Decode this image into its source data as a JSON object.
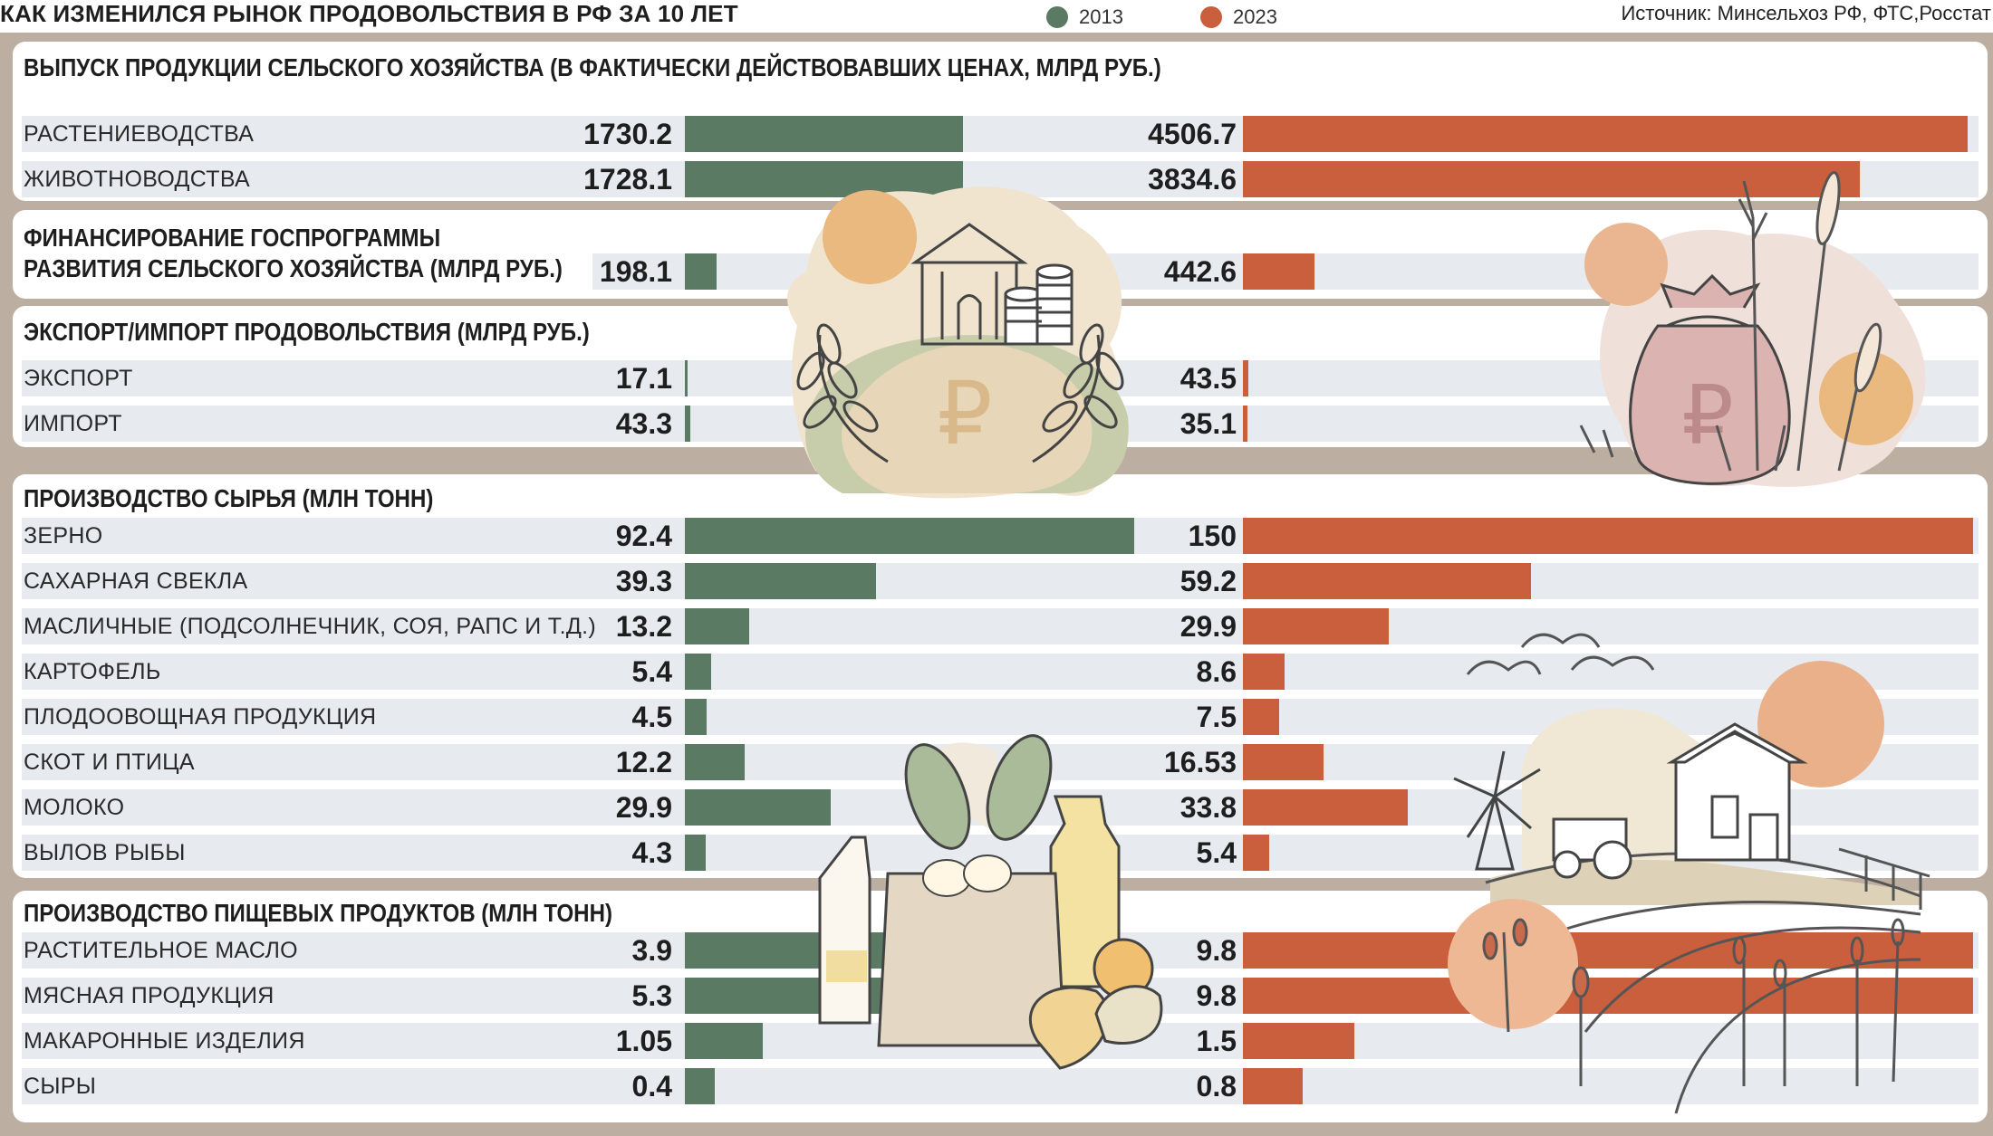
{
  "header": {
    "title": "КАК ИЗМЕНИЛСЯ РЫНОК ПРОДОВОЛЬСТВИЯ В РФ ЗА 10 ЛЕТ",
    "source": "Источник: Минсельхоз РФ, ФТС,Росстат"
  },
  "legend": [
    {
      "label": "2013",
      "color": "#5b7a64"
    },
    {
      "label": "2023",
      "color": "#c95f3c"
    }
  ],
  "sections": [
    {
      "title": "ВЫПУСК ПРОДУКЦИИ СЕЛЬСКОГО ХОЗЯЙСТВА (В ФАКТИЧЕСКИ ДЕЙСТВОВАВШИХ ЦЕНАХ, МЛРД РУБ.)"
    },
    {
      "title": "ФИНАНСИРОВАНИЕ ГОСПРОГРАММЫ\nРАЗВИТИЯ СЕЛЬСКОГО ХОЗЯЙСТВА (МЛРД РУБ.)"
    },
    {
      "title": "ЭКСПОРТ/ИМПОРТ ПРОДОВОЛЬСТВИЯ (МЛРД РУБ.)"
    },
    {
      "title": "ПРОИЗВОДСТВО СЫРЬЯ (МЛН ТОНН)"
    },
    {
      "title": "ПРОИЗВОДСТВО ПИЩЕВЫХ ПРОДУКТОВ (МЛН ТОНН)"
    }
  ],
  "chart_data": {
    "type": "bar",
    "series_names": [
      "2013",
      "2023"
    ],
    "colors": {
      "2013": "#5b7a64",
      "2023": "#c95f3c"
    },
    "rows": [
      {
        "section": 0,
        "label": "РАСТЕНИЕВОДСТВА",
        "v2013": "1730.2",
        "v2023": "4506.7"
      },
      {
        "section": 0,
        "label": "ЖИВОТНОВОДСТВА",
        "v2013": "1728.1",
        "v2023": "3834.6"
      },
      {
        "section": 1,
        "label": "",
        "v2013": "198.1",
        "v2023": "442.6"
      },
      {
        "section": 2,
        "label": "ЭКСПОРТ",
        "v2013": "17.1",
        "v2023": "43.5"
      },
      {
        "section": 2,
        "label": "ИМПОРТ",
        "v2013": "43.3",
        "v2023": "35.1"
      },
      {
        "section": 3,
        "label": "ЗЕРНО",
        "v2013": "92.4",
        "v2023": "150"
      },
      {
        "section": 3,
        "label": "САХАРНАЯ СВЕКЛА",
        "v2013": "39.3",
        "v2023": "59.2"
      },
      {
        "section": 3,
        "label": "МАСЛИЧНЫЕ (ПОДСОЛНЕЧНИК, СОЯ, РАПС И Т.Д.)",
        "v2013": "13.2",
        "v2023": "29.9"
      },
      {
        "section": 3,
        "label": "КАРТОФЕЛЬ",
        "v2013": "5.4",
        "v2023": "8.6"
      },
      {
        "section": 3,
        "label": "ПЛОДООВОЩНАЯ ПРОДУКЦИЯ",
        "v2013": "4.5",
        "v2023": "7.5"
      },
      {
        "section": 3,
        "label": "СКОТ И ПТИЦА",
        "v2013": "12.2",
        "v2023": "16.53"
      },
      {
        "section": 3,
        "label": "МОЛОКО",
        "v2013": "29.9",
        "v2023": "33.8"
      },
      {
        "section": 3,
        "label": "ВЫЛОВ РЫБЫ",
        "v2013": "4.3",
        "v2023": "5.4"
      },
      {
        "section": 4,
        "label": "РАСТИТЕЛЬНОЕ МАСЛО",
        "v2013": "3.9",
        "v2023": "9.8"
      },
      {
        "section": 4,
        "label": "МЯСНАЯ ПРОДУКЦИЯ",
        "v2013": "5.3",
        "v2023": "9.8"
      },
      {
        "section": 4,
        "label": "МАКАРОННЫЕ ИЗДЕЛИЯ",
        "v2013": "1.05",
        "v2023": "1.5"
      },
      {
        "section": 4,
        "label": "СЫРЫ",
        "v2013": "0.4",
        "v2023": "0.8"
      }
    ]
  },
  "icons": [
    "ruble-hill-bank-illustration",
    "money-bag-wheat-illustration",
    "grocery-bag-illustration",
    "farm-windmill-illustration",
    "wildflowers-illustration"
  ]
}
